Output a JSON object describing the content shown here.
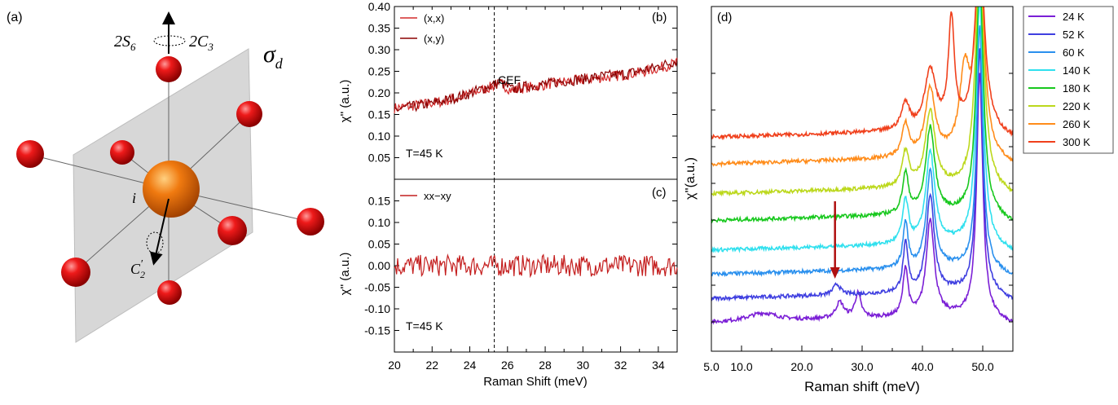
{
  "panel_a": {
    "label": "(a)",
    "sym_2s6": "2S",
    "sym_2s6_sub": "6",
    "sym_2c3": "2C",
    "sym_2c3_sub": "3",
    "sym_sigma": "σ",
    "sym_sigma_sub": "d",
    "sym_i": "i",
    "sym_c2": "C",
    "sym_c2_sub": "2",
    "sym_c2_sup": "′",
    "colors": {
      "sphere": "#e01010",
      "center": "#f07a10",
      "plane": "#c8c8c8"
    }
  },
  "chart_data": [
    {
      "id": "b",
      "type": "line",
      "panel_label": "(b)",
      "xlabel": "",
      "ylabel": "χ'' (a.u.)",
      "xlim": [
        20,
        35
      ],
      "ylim": [
        0,
        0.4
      ],
      "yticks": [
        0.05,
        0.1,
        0.15,
        0.2,
        0.25,
        0.3,
        0.35,
        0.4
      ],
      "ytick_labels": [
        "0.05",
        "0.10",
        "0.15",
        "0.20",
        "0.25",
        "0.30",
        "0.35",
        "0.40"
      ],
      "annotation": "T=45 K",
      "marker_label": "CEF",
      "marker_x": 25.3,
      "series": [
        {
          "name": "(x,x)",
          "color": "#d42a2a",
          "x_range": [
            20,
            35
          ],
          "values": [
            0.165,
            0.168,
            0.172,
            0.176,
            0.18,
            0.186,
            0.194,
            0.203,
            0.212,
            0.222,
            0.205,
            0.212,
            0.215,
            0.22,
            0.224,
            0.228,
            0.23,
            0.234,
            0.236,
            0.24,
            0.244,
            0.248,
            0.255,
            0.262,
            0.27
          ]
        },
        {
          "name": "(x,y)",
          "color": "#8b0000",
          "x_range": [
            20,
            35
          ],
          "values": [
            0.16,
            0.166,
            0.17,
            0.175,
            0.18,
            0.188,
            0.195,
            0.205,
            0.215,
            0.224,
            0.208,
            0.214,
            0.218,
            0.221,
            0.226,
            0.229,
            0.232,
            0.236,
            0.24,
            0.242,
            0.246,
            0.252,
            0.258,
            0.266,
            0.275
          ]
        }
      ]
    },
    {
      "id": "c",
      "type": "line",
      "panel_label": "(c)",
      "xlabel": "Raman Shift (meV)",
      "ylabel": "χ'' (a.u.)",
      "xlim": [
        20,
        35
      ],
      "ylim": [
        -0.2,
        0.2
      ],
      "xticks": [
        20,
        22,
        24,
        26,
        28,
        30,
        32,
        34
      ],
      "xtick_labels": [
        "20",
        "22",
        "24",
        "26",
        "28",
        "30",
        "32",
        "34"
      ],
      "yticks": [
        -0.15,
        -0.1,
        -0.05,
        0.0,
        0.05,
        0.1,
        0.15
      ],
      "ytick_labels": [
        "-0.15",
        "-0.10",
        "-0.05",
        "0.00",
        "0.05",
        "0.10",
        "0.15"
      ],
      "annotation": "T=45 K",
      "marker_x": 25.3,
      "series": [
        {
          "name": "xx−xy",
          "color": "#c41e1e",
          "x_range": [
            20,
            35
          ],
          "values": [
            0,
            0,
            0,
            0,
            0,
            0,
            0,
            0,
            0,
            0,
            0,
            0,
            0,
            0,
            0,
            0,
            0,
            0,
            0,
            0,
            0,
            0,
            0,
            0,
            0
          ]
        }
      ]
    },
    {
      "id": "d",
      "type": "line",
      "panel_label": "(d)",
      "xlabel": "Raman shift (meV)",
      "ylabel": "χ''(a.u.)",
      "xlim": [
        5,
        55
      ],
      "xticks": [
        5,
        10,
        20,
        30,
        40,
        50
      ],
      "xtick_labels": [
        "5.0",
        "10.0",
        "20.0",
        "30.0",
        "40.0",
        "50.0"
      ],
      "arrow_x": 25.5,
      "legend_position": "right",
      "series": [
        {
          "name": "24 K",
          "color": "#7b1fd6",
          "baseline": 0.0,
          "peaks": [
            [
              13.5,
              0.03,
              3.0
            ],
            [
              26.3,
              0.06,
              0.8
            ],
            [
              29.3,
              0.09,
              0.6
            ],
            [
              37.2,
              0.18,
              0.5
            ],
            [
              41.3,
              0.36,
              0.8
            ],
            [
              49.5,
              0.9,
              0.6
            ]
          ]
        },
        {
          "name": "52 K",
          "color": "#3f3fe0",
          "baseline": 0.09,
          "peaks": [
            [
              25.8,
              0.04,
              0.7
            ],
            [
              37.2,
              0.18,
              0.5
            ],
            [
              41.3,
              0.36,
              0.8
            ],
            [
              49.5,
              0.9,
              0.6
            ]
          ]
        },
        {
          "name": "60 K",
          "color": "#2a90ee",
          "baseline": 0.18,
          "peaks": [
            [
              37.2,
              0.17,
              0.5
            ],
            [
              41.3,
              0.36,
              0.8
            ],
            [
              49.5,
              0.9,
              0.6
            ]
          ]
        },
        {
          "name": "140 K",
          "color": "#30e0ee",
          "baseline": 0.27,
          "peaks": [
            [
              37.2,
              0.16,
              0.6
            ],
            [
              41.3,
              0.34,
              0.9
            ],
            [
              49.5,
              0.9,
              0.7
            ]
          ]
        },
        {
          "name": "180 K",
          "color": "#18c81e",
          "baseline": 0.38,
          "peaks": [
            [
              37.2,
              0.15,
              0.6
            ],
            [
              41.3,
              0.32,
              0.9
            ],
            [
              49.5,
              0.9,
              0.7
            ]
          ]
        },
        {
          "name": "220 K",
          "color": "#bcd81c",
          "baseline": 0.48,
          "peaks": [
            [
              37.2,
              0.13,
              0.7
            ],
            [
              41.3,
              0.28,
              1.0
            ],
            [
              49.5,
              0.9,
              0.8
            ]
          ]
        },
        {
          "name": "260 K",
          "color": "#ff8c1a",
          "baseline": 0.59,
          "peaks": [
            [
              37.2,
              0.12,
              0.7
            ],
            [
              41.3,
              0.25,
              1.0
            ],
            [
              47.0,
              0.3,
              1.0
            ],
            [
              49.5,
              0.8,
              0.8
            ]
          ]
        },
        {
          "name": "300 K",
          "color": "#f0401c",
          "baseline": 0.69,
          "peaks": [
            [
              37.2,
              0.1,
              0.8
            ],
            [
              41.3,
              0.22,
              1.1
            ],
            [
              44.8,
              0.4,
              0.6
            ],
            [
              49.5,
              0.7,
              0.9
            ]
          ]
        }
      ]
    }
  ]
}
